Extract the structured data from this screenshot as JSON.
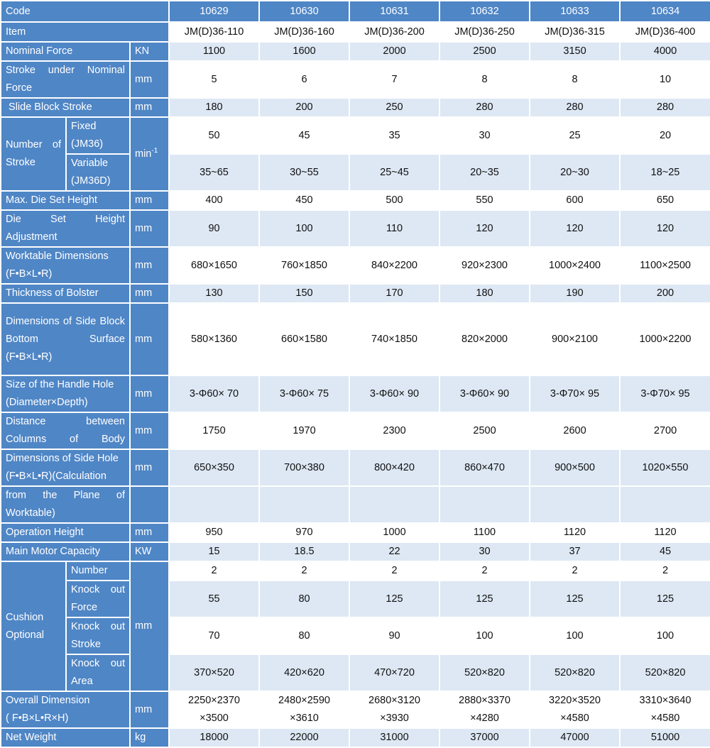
{
  "table": {
    "code_label": "Code",
    "codes": [
      "10629",
      "10630",
      "10631",
      "10632",
      "10633",
      "10634"
    ],
    "item_label": "Item",
    "items": [
      "JM(D)36-110",
      "JM(D)36-160",
      "JM(D)36-200",
      "JM(D)36-250",
      "JM(D)36-315",
      "JM(D)36-400"
    ],
    "rows": {
      "nominal_force": {
        "label": "Nominal Force",
        "unit": "KN",
        "values": [
          "1100",
          "1600",
          "2000",
          "2500",
          "3150",
          "4000"
        ]
      },
      "stroke_nominal": {
        "label": "Stroke under Nominal Force",
        "unit": "mm",
        "values": [
          "5",
          "6",
          "7",
          "8",
          "8",
          "10"
        ]
      },
      "slide_stroke": {
        "label": " Slide Block Stroke",
        "unit": "mm",
        "values": [
          "180",
          "200",
          "250",
          "280",
          "280",
          "280"
        ]
      },
      "num_stroke": {
        "label": "Number of Stroke",
        "unit_base": "min",
        "unit_sup": "-1",
        "fixed": {
          "label": "Fixed (JM36)",
          "values": [
            "50",
            "45",
            "35",
            "30",
            "25",
            "20"
          ]
        },
        "variable": {
          "label": "Variable (JM36D)",
          "values": [
            "35~65",
            "30~55",
            "25~45",
            "20~35",
            "20~30",
            "18~25"
          ]
        }
      },
      "max_die": {
        "label": "Max. Die Set Height",
        "unit": "mm",
        "values": [
          "400",
          "450",
          "500",
          "550",
          "600",
          "650"
        ]
      },
      "die_adj": {
        "label": "Die Set Height Adjustment",
        "unit": "mm",
        "values": [
          "90",
          "100",
          "110",
          "120",
          "120",
          "120"
        ]
      },
      "worktable": {
        "label_1": "Worktable Dimensions",
        "label_2": "(F•B×L•R)",
        "unit": "mm",
        "values": [
          "680×1650",
          "760×1850",
          "840×2200",
          "920×2300",
          "1000×2400",
          "1100×2500"
        ]
      },
      "bolster": {
        "label": "Thickness of Bolster",
        "unit": "mm",
        "values": [
          "130",
          "150",
          "170",
          "180",
          "190",
          "200"
        ]
      },
      "side_block": {
        "label_1": "Dimensions of Side Block",
        "label_2": "Bottom Surface",
        "label_3": "(F•B×L•R)",
        "unit": "mm",
        "values": [
          "580×1360",
          "660×1580",
          "740×1850",
          "820×2000",
          "900×2100",
          "1000×2200"
        ]
      },
      "handle_hole": {
        "label_1": "Size of the Handle Hole",
        "label_2": "(Diameter×Depth)",
        "unit": "mm",
        "values": [
          "3-Φ60× 70",
          "3-Φ60× 75",
          "3-Φ60× 90",
          "3-Φ60× 90",
          "3-Φ70× 95",
          "3-Φ70× 95"
        ]
      },
      "columns": {
        "label": "Distance between Columns of Body",
        "unit": "mm",
        "values": [
          "1750",
          "1970",
          "2300",
          "2500",
          "2600",
          "2700"
        ]
      },
      "side_hole": {
        "label_1": "Dimensions of Side Hole",
        "label_2": "(F•B×L•R)(Calculation",
        "unit": "mm",
        "values": [
          "650×350",
          "700×380",
          "800×420",
          "860×470",
          "900×500",
          "1020×550"
        ]
      },
      "plane": {
        "label": "from the Plane of Worktable)"
      },
      "op_height": {
        "label": "Operation Height",
        "unit": "mm",
        "values": [
          "950",
          "970",
          "1000",
          "1100",
          "1120",
          "1120"
        ]
      },
      "motor": {
        "label": "Main Motor Capacity",
        "unit": "KW",
        "values": [
          "15",
          "18.5",
          "22",
          "30",
          "37",
          "45"
        ]
      },
      "cushion": {
        "label": "Cushion Optional",
        "unit": "mm",
        "number": {
          "label": "Number",
          "values": [
            "2",
            "2",
            "2",
            "2",
            "2",
            "2"
          ]
        },
        "force": {
          "label": "Knock out Force",
          "values": [
            "55",
            "80",
            "125",
            "125",
            "125",
            "125"
          ]
        },
        "stroke": {
          "label": "Knock out Stroke",
          "values": [
            "70",
            "80",
            "90",
            "100",
            "100",
            "100"
          ]
        },
        "area": {
          "label": "Knock out Area",
          "values": [
            "370×520",
            "420×620",
            "470×720",
            "520×820",
            "520×820",
            "520×820"
          ]
        }
      },
      "overall": {
        "label_1": "Overall Dimension",
        "label_2": "( F•B×L•R×H)",
        "unit": "mm",
        "line1": [
          "2250×2370",
          "2480×2590",
          "2680×3120",
          "2880×3370",
          "3220×3520",
          "3310×3640"
        ],
        "line2": [
          "×3500",
          "×3610",
          "×3930",
          "×4280",
          "×4580",
          "×4580"
        ]
      },
      "weight": {
        "label": "Net Weight",
        "unit": "kg",
        "values": [
          "18000",
          "22000",
          "31000",
          "37000",
          "47000",
          "51000"
        ]
      }
    }
  }
}
